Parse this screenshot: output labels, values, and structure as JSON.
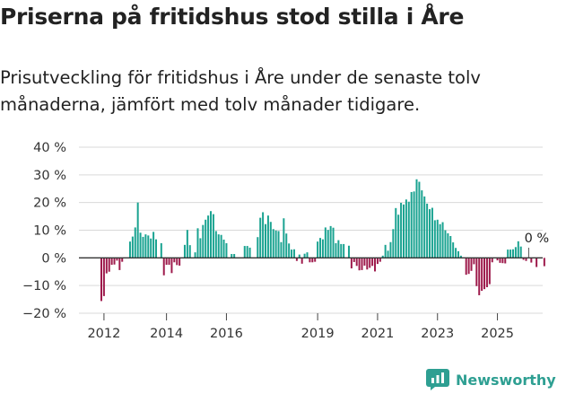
{
  "title": "Priserna på fritidshus stod stilla i Åre",
  "subtitle": "Prisutveckling för fritidshus i Åre under de senaste tolv månaderna, jämfört med tolv månader tidigare.",
  "brand": "Newsworthy",
  "colors": {
    "positive": "#1aa391",
    "negative": "#9e1b4c",
    "grid": "#d9d9d9",
    "zero": "#333333",
    "brand": "#2e9f92"
  },
  "chart_data": {
    "type": "bar",
    "title": "Priserna på fritidshus stod stilla i Åre",
    "xlabel": "",
    "ylabel": "",
    "ylim": [
      -20,
      40
    ],
    "yticks": [
      -20,
      -10,
      0,
      10,
      20,
      30,
      40
    ],
    "ytick_labels": [
      "−20 %",
      "−10 %",
      "0 %",
      "10 %",
      "20 %",
      "30 %",
      "40 %"
    ],
    "xtick_labels": [
      "2012",
      "2014",
      "2016",
      "2019",
      "2021",
      "2023",
      "2025"
    ],
    "xtick_index": [
      1,
      25,
      48,
      83,
      106,
      129,
      152
    ],
    "annotation": {
      "text": "0 %",
      "index": 164
    },
    "unit": "%",
    "values": [
      -15.6,
      -13.8,
      -5.6,
      -5.0,
      -2.5,
      -2.4,
      -1.0,
      -4.4,
      -1.4,
      0.0,
      0.0,
      5.9,
      7.7,
      11.0,
      20.0,
      9.1,
      7.6,
      8.5,
      8.1,
      7.0,
      9.4,
      6.7,
      0.0,
      5.3,
      -6.3,
      -2.5,
      -2.5,
      -5.5,
      -1.6,
      -2.6,
      -2.8,
      0.0,
      4.7,
      10.1,
      4.6,
      0.0,
      2.0,
      10.7,
      7.1,
      11.9,
      13.8,
      15.3,
      16.9,
      15.8,
      9.7,
      8.5,
      8.3,
      6.6,
      5.3,
      0.0,
      1.4,
      1.4,
      0.0,
      0.0,
      0.0,
      4.3,
      4.3,
      3.7,
      0.0,
      0.0,
      7.5,
      14.5,
      16.5,
      12.2,
      15.3,
      13.0,
      10.4,
      9.9,
      9.7,
      5.7,
      14.3,
      8.8,
      5.2,
      3.0,
      3.1,
      -1.1,
      1.2,
      -2.1,
      1.5,
      2.0,
      -1.6,
      -1.6,
      -1.4,
      5.9,
      7.2,
      6.7,
      11.0,
      10.1,
      11.5,
      10.9,
      5.3,
      6.4,
      5.0,
      5.0,
      0.0,
      4.4,
      -3.8,
      -1.5,
      -2.9,
      -4.5,
      -4.4,
      -2.8,
      -4.2,
      -3.6,
      -2.9,
      -4.9,
      -2.2,
      -1.4,
      0.8,
      4.7,
      2.6,
      5.7,
      10.4,
      18.0,
      15.6,
      19.9,
      19.3,
      21.1,
      20.3,
      23.8,
      24.0,
      28.4,
      27.5,
      24.4,
      22.2,
      19.6,
      17.6,
      18.1,
      13.6,
      13.8,
      12.2,
      12.9,
      10.0,
      8.9,
      7.9,
      5.6,
      3.6,
      2.4,
      0.8,
      0.0,
      -6.1,
      -5.8,
      -4.7,
      -2.3,
      -10.2,
      -13.5,
      -11.9,
      -11.3,
      -10.6,
      -9.5,
      -1.6,
      0.0,
      -0.9,
      -1.8,
      -1.9,
      -2.0,
      3.0,
      3.0,
      3.1,
      3.9,
      6.0,
      4.1,
      -0.7,
      -1.1,
      0.0,
      -1.7,
      0.0,
      -3.3,
      0.0,
      0.0,
      -3.0
    ]
  }
}
